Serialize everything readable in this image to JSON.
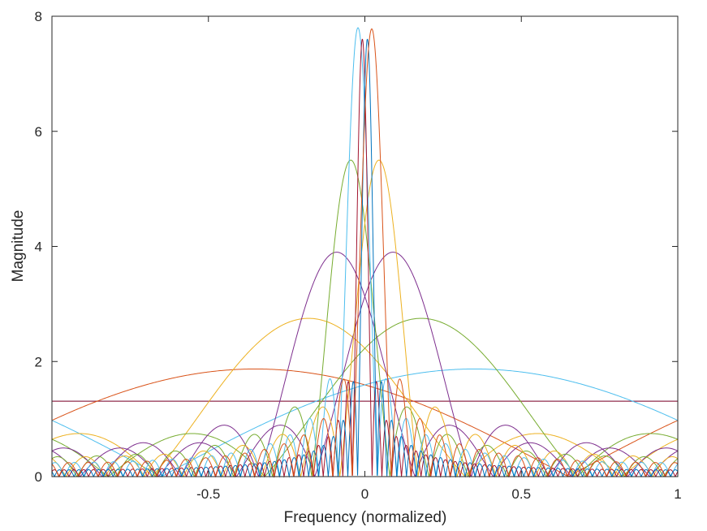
{
  "chart_data": {
    "type": "line",
    "title": "",
    "xlabel": "Frequency (normalized)",
    "ylabel": "Magnitude",
    "xlim": [
      -1,
      1
    ],
    "ylim": [
      0,
      8
    ],
    "xticks": [
      -0.5,
      0,
      0.5,
      1
    ],
    "xtick_labels": [
      "-0.5",
      "0",
      "0.5",
      "1"
    ],
    "yticks": [
      0,
      2,
      4,
      6,
      8
    ],
    "ytick_labels": [
      "0",
      "2",
      "4",
      "6",
      "8"
    ],
    "grid": false,
    "legend": "none",
    "box": true,
    "curve_model": "abs(sin(pi*N*(x-c)/2)/(N*sin(pi*(x-c)/2))) scaled to peak",
    "series": [
      {
        "color": "#0072BD",
        "peak": 1.31,
        "center": -0.7,
        "width": 1
      },
      {
        "color": "#A2142F",
        "peak": 1.31,
        "center": 0.7,
        "width": 1
      },
      {
        "color": "#D95319",
        "peak": 1.87,
        "center": -0.35,
        "width": 2
      },
      {
        "color": "#4DBEEE",
        "peak": 1.87,
        "center": 0.35,
        "width": 2
      },
      {
        "color": "#EDB120",
        "peak": 2.75,
        "center": -0.18,
        "width": 4
      },
      {
        "color": "#77AC30",
        "peak": 2.75,
        "center": 0.18,
        "width": 4
      },
      {
        "color": "#7E2F8E",
        "peak": 3.9,
        "center": -0.09,
        "width": 8
      },
      {
        "color": "#7E2F8E",
        "peak": 3.9,
        "center": 0.09,
        "width": 8
      },
      {
        "color": "#77AC30",
        "peak": 5.5,
        "center": -0.045,
        "width": 16
      },
      {
        "color": "#EDB120",
        "peak": 5.5,
        "center": 0.045,
        "width": 16
      },
      {
        "color": "#4DBEEE",
        "peak": 7.8,
        "center": -0.022,
        "width": 32
      },
      {
        "color": "#A2142F",
        "peak": 7.6,
        "center": -0.008,
        "width": 64
      },
      {
        "color": "#0072BD",
        "peak": 7.6,
        "center": 0.008,
        "width": 64
      },
      {
        "color": "#D95319",
        "peak": 7.78,
        "center": 0.022,
        "width": 32
      }
    ]
  }
}
